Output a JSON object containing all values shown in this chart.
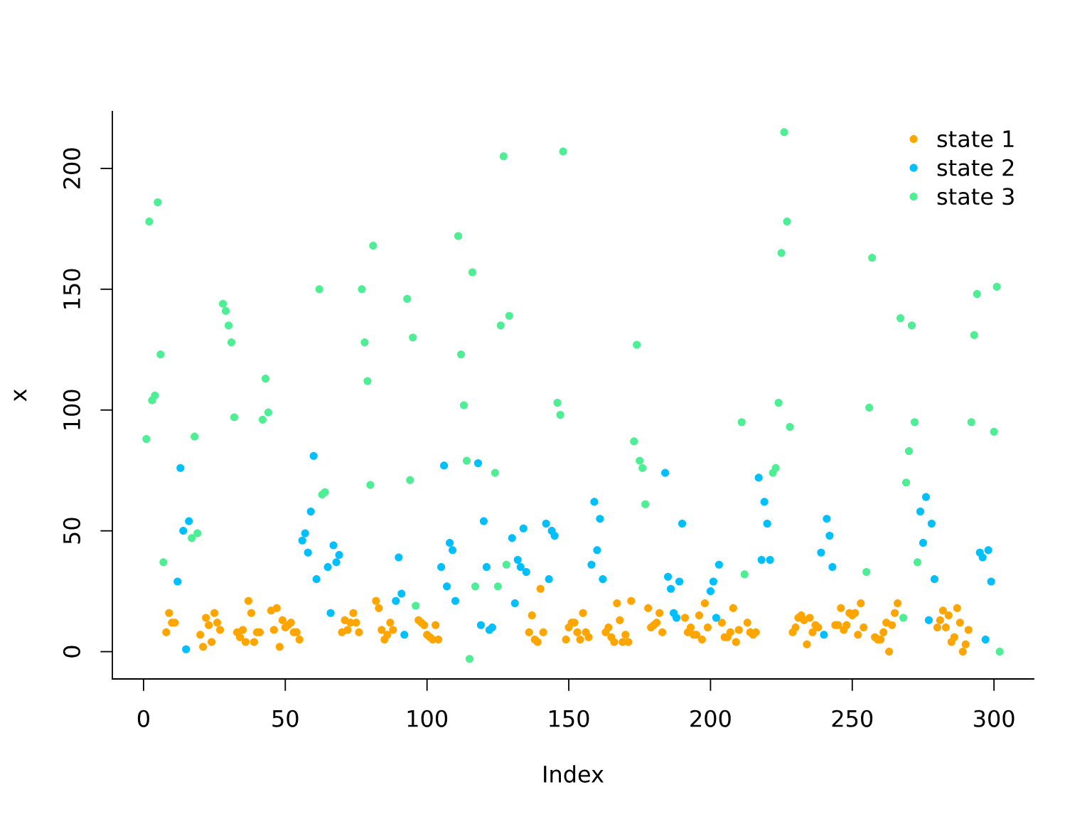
{
  "chart_data": {
    "type": "scatter",
    "xlabel": "Index",
    "ylabel": "x",
    "series": [
      {
        "name": "state 1",
        "color": "#ffa500",
        "x": [
          8,
          9,
          10,
          11,
          20,
          21,
          22,
          23,
          24,
          25,
          26,
          27,
          33,
          34,
          35,
          36,
          37,
          38,
          39,
          40,
          41,
          45,
          46,
          47,
          48,
          49,
          50,
          51,
          52,
          53,
          54,
          55,
          70,
          71,
          72,
          73,
          74,
          75,
          76,
          82,
          83,
          84,
          85,
          86,
          87,
          88,
          97,
          98,
          99,
          100,
          101,
          102,
          103,
          104,
          136,
          137,
          138,
          139,
          140,
          141,
          149,
          150,
          151,
          152,
          153,
          154,
          155,
          156,
          157,
          163,
          164,
          165,
          166,
          167,
          168,
          169,
          170,
          171,
          172,
          178,
          179,
          180,
          181,
          182,
          183,
          191,
          192,
          193,
          194,
          195,
          196,
          197,
          198,
          199,
          204,
          205,
          206,
          207,
          208,
          209,
          210,
          213,
          214,
          215,
          216,
          229,
          230,
          231,
          232,
          233,
          234,
          235,
          236,
          237,
          238,
          244,
          245,
          246,
          247,
          248,
          249,
          250,
          251,
          252,
          253,
          254,
          258,
          259,
          260,
          261,
          262,
          263,
          264,
          265,
          266,
          280,
          281,
          282,
          283,
          284,
          285,
          286,
          287,
          288,
          289,
          290,
          291
        ],
        "values": [
          8,
          16,
          12,
          12,
          7,
          2,
          14,
          11,
          4,
          16,
          12,
          9,
          8,
          6,
          9,
          4,
          21,
          16,
          4,
          8,
          8,
          17,
          9,
          18,
          2,
          13,
          10,
          11,
          12,
          8,
          8,
          5,
          8,
          13,
          9,
          12,
          16,
          12,
          8,
          21,
          18,
          9,
          5,
          7,
          12,
          9,
          13,
          12,
          11,
          7,
          6,
          5,
          11,
          5,
          8,
          15,
          5,
          4,
          26,
          8,
          5,
          10,
          12,
          12,
          8,
          5,
          16,
          8,
          6,
          8,
          10,
          6,
          4,
          20,
          13,
          4,
          7,
          4,
          21,
          18,
          10,
          11,
          12,
          16,
          8,
          14,
          8,
          10,
          7,
          7,
          15,
          5,
          20,
          10,
          12,
          6,
          6,
          8,
          18,
          4,
          9,
          12,
          8,
          7,
          8,
          8,
          10,
          14,
          15,
          13,
          3,
          14,
          8,
          11,
          10,
          11,
          11,
          18,
          9,
          11,
          16,
          15,
          16,
          7,
          20,
          10,
          6,
          5,
          5,
          8,
          12,
          0,
          11,
          16,
          20,
          10,
          13,
          17,
          10,
          15,
          4,
          6,
          18,
          12,
          0,
          3,
          9
        ]
      },
      {
        "name": "state 2",
        "color": "#00bfff",
        "x": [
          12,
          13,
          14,
          15,
          16,
          56,
          57,
          58,
          59,
          60,
          61,
          65,
          66,
          67,
          68,
          69,
          89,
          90,
          91,
          92,
          105,
          106,
          107,
          108,
          109,
          110,
          118,
          119,
          120,
          121,
          122,
          123,
          130,
          131,
          132,
          133,
          134,
          135,
          142,
          143,
          144,
          145,
          158,
          159,
          160,
          161,
          162,
          184,
          185,
          186,
          187,
          188,
          189,
          190,
          200,
          201,
          202,
          203,
          217,
          218,
          219,
          220,
          221,
          239,
          240,
          241,
          242,
          243,
          274,
          275,
          276,
          277,
          278,
          279,
          295,
          296,
          297,
          298,
          299
        ],
        "values": [
          29,
          76,
          50,
          1,
          54,
          46,
          49,
          41,
          58,
          81,
          30,
          35,
          16,
          44,
          37,
          40,
          21,
          39,
          24,
          7,
          35,
          77,
          27,
          45,
          42,
          21,
          78,
          11,
          54,
          35,
          9,
          10,
          47,
          20,
          38,
          35,
          51,
          33,
          53,
          30,
          50,
          48,
          36,
          62,
          42,
          55,
          30,
          74,
          31,
          26,
          16,
          14,
          29,
          53,
          25,
          29,
          14,
          36,
          72,
          38,
          62,
          53,
          38,
          41,
          7,
          55,
          48,
          35,
          58,
          45,
          64,
          13,
          53,
          30,
          41,
          39,
          5,
          42,
          29
        ]
      },
      {
        "name": "state 3",
        "color": "#4eee94",
        "x": [
          1,
          2,
          3,
          4,
          5,
          6,
          7,
          17,
          18,
          19,
          28,
          29,
          30,
          31,
          32,
          42,
          43,
          44,
          62,
          63,
          64,
          77,
          78,
          79,
          80,
          81,
          93,
          94,
          95,
          96,
          111,
          112,
          113,
          114,
          115,
          116,
          117,
          124,
          125,
          126,
          127,
          128,
          129,
          146,
          147,
          148,
          173,
          174,
          175,
          176,
          177,
          211,
          212,
          222,
          223,
          224,
          225,
          226,
          227,
          228,
          255,
          256,
          257,
          267,
          268,
          269,
          270,
          271,
          272,
          273,
          292,
          293,
          294,
          300,
          301,
          302
        ],
        "values": [
          88,
          178,
          104,
          106,
          186,
          123,
          37,
          47,
          89,
          49,
          144,
          141,
          135,
          128,
          97,
          96,
          113,
          99,
          150,
          65,
          66,
          150,
          128,
          112,
          69,
          168,
          146,
          71,
          130,
          19,
          172,
          123,
          102,
          79,
          -3,
          157,
          27,
          74,
          27,
          135,
          205,
          36,
          139,
          103,
          98,
          207,
          87,
          127,
          79,
          76,
          61,
          95,
          32,
          74,
          76,
          103,
          165,
          215,
          178,
          93,
          33,
          101,
          163,
          138,
          14,
          70,
          83,
          135,
          95,
          37,
          95,
          131,
          148,
          91,
          151,
          0
        ]
      }
    ],
    "xlim": [
      -11,
      314
    ],
    "ylim": [
      -11.3,
      223.5
    ],
    "xticks": [
      0,
      50,
      100,
      150,
      200,
      250,
      300
    ],
    "yticks": [
      0,
      50,
      100,
      150,
      200
    ],
    "legend": "top right",
    "marker": "circle"
  }
}
